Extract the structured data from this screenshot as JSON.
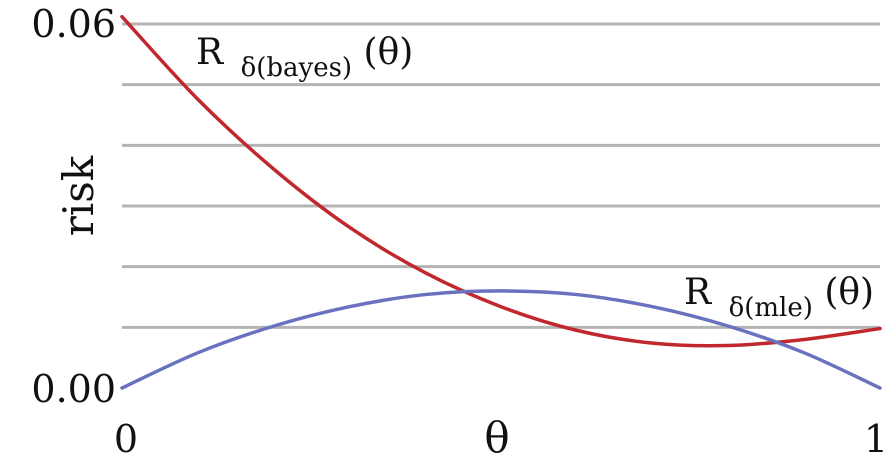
{
  "chart_data": {
    "type": "line",
    "title": "",
    "xlabel": "θ",
    "ylabel": "risk",
    "xlim": [
      0,
      1
    ],
    "ylim": [
      0,
      0.06
    ],
    "grid": true,
    "x_tick_labels": [
      "0",
      "θ",
      "1"
    ],
    "y_tick_labels": [
      "0.00",
      "0.06"
    ],
    "y_gridlines": [
      0.01,
      0.02,
      0.03,
      0.04,
      0.05,
      0.06
    ],
    "series": [
      {
        "name": "bayes",
        "label_main": "R",
        "label_sub": "δ(bayes)",
        "label_tail": "(θ)",
        "color": "#c0282d",
        "x": [
          0,
          0.1,
          0.2,
          0.3,
          0.4,
          0.5,
          0.6,
          0.7,
          0.8,
          0.9,
          1.0
        ],
        "y": [
          0.0612,
          0.0476,
          0.0361,
          0.0265,
          0.019,
          0.0134,
          0.0095,
          0.0074,
          0.007,
          0.008,
          0.0098
        ]
      },
      {
        "name": "mle",
        "label_main": "R",
        "label_sub": "δ(mle)",
        "label_tail": "(θ)",
        "color": "#6a72c0",
        "x": [
          0,
          0.1,
          0.2,
          0.3,
          0.4,
          0.5,
          0.6,
          0.7,
          0.8,
          0.9,
          1.0
        ],
        "y": [
          0.0,
          0.0058,
          0.0102,
          0.0134,
          0.0154,
          0.016,
          0.0154,
          0.0134,
          0.0102,
          0.0058,
          0.0
        ]
      }
    ]
  }
}
